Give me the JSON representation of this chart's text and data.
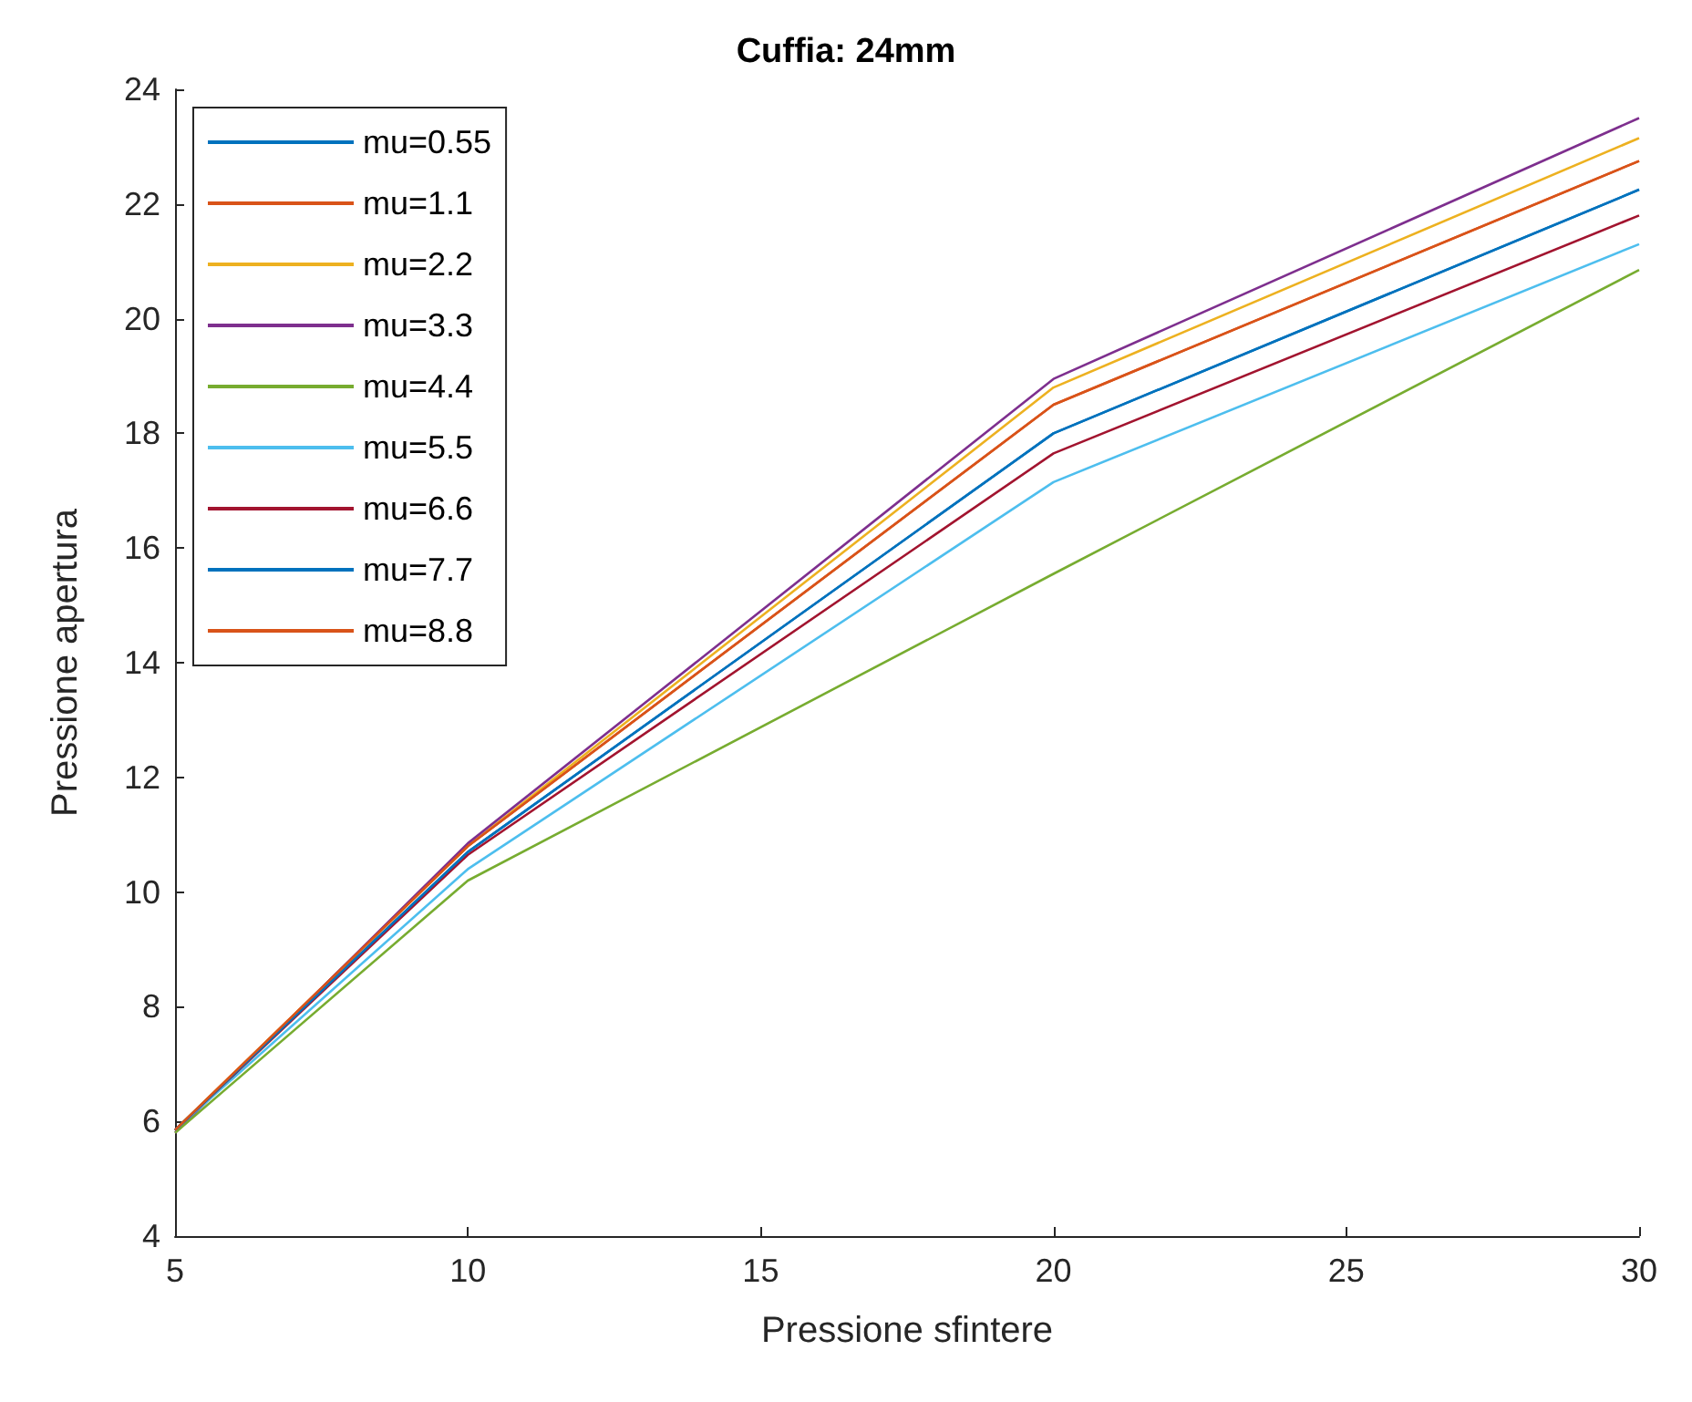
{
  "chart_data": {
    "type": "line",
    "title": "Cuffia: 24mm",
    "xlabel": "Pressione sfintere",
    "ylabel": "Pressione apertura",
    "x": [
      5,
      10,
      20,
      30
    ],
    "xlim": [
      5,
      30
    ],
    "xticks": [
      5,
      10,
      15,
      20,
      25,
      30
    ],
    "ylim": [
      4,
      24
    ],
    "yticks": [
      4,
      6,
      8,
      10,
      12,
      14,
      16,
      18,
      20,
      22,
      24
    ],
    "legend": "top left",
    "grid": false,
    "marker": "none",
    "line_style": "solid",
    "series": [
      {
        "name": "mu=0.55",
        "color": "#0072bd",
        "values": [
          5.85,
          10.7,
          18.0,
          22.25
        ]
      },
      {
        "name": "mu=1.1",
        "color": "#d95319",
        "values": [
          5.85,
          10.8,
          18.5,
          22.75
        ]
      },
      {
        "name": "mu=2.2",
        "color": "#edb120",
        "values": [
          5.85,
          10.8,
          18.8,
          23.15
        ]
      },
      {
        "name": "mu=3.3",
        "color": "#7e2f8e",
        "values": [
          5.8,
          10.85,
          18.95,
          23.5
        ]
      },
      {
        "name": "mu=4.4",
        "color": "#77ac30",
        "values": [
          5.8,
          10.2,
          15.55,
          20.85
        ]
      },
      {
        "name": "mu=5.5",
        "color": "#4dbeee",
        "values": [
          5.85,
          10.4,
          17.15,
          21.3
        ]
      },
      {
        "name": "mu=6.6",
        "color": "#a2142f",
        "values": [
          5.85,
          10.65,
          17.65,
          21.8
        ]
      },
      {
        "name": "mu=7.7",
        "color": "#0072bd",
        "values": [
          5.85,
          10.7,
          18.0,
          22.25
        ]
      },
      {
        "name": "mu=8.8",
        "color": "#d95319",
        "values": [
          5.85,
          10.8,
          18.5,
          22.75
        ]
      }
    ]
  }
}
